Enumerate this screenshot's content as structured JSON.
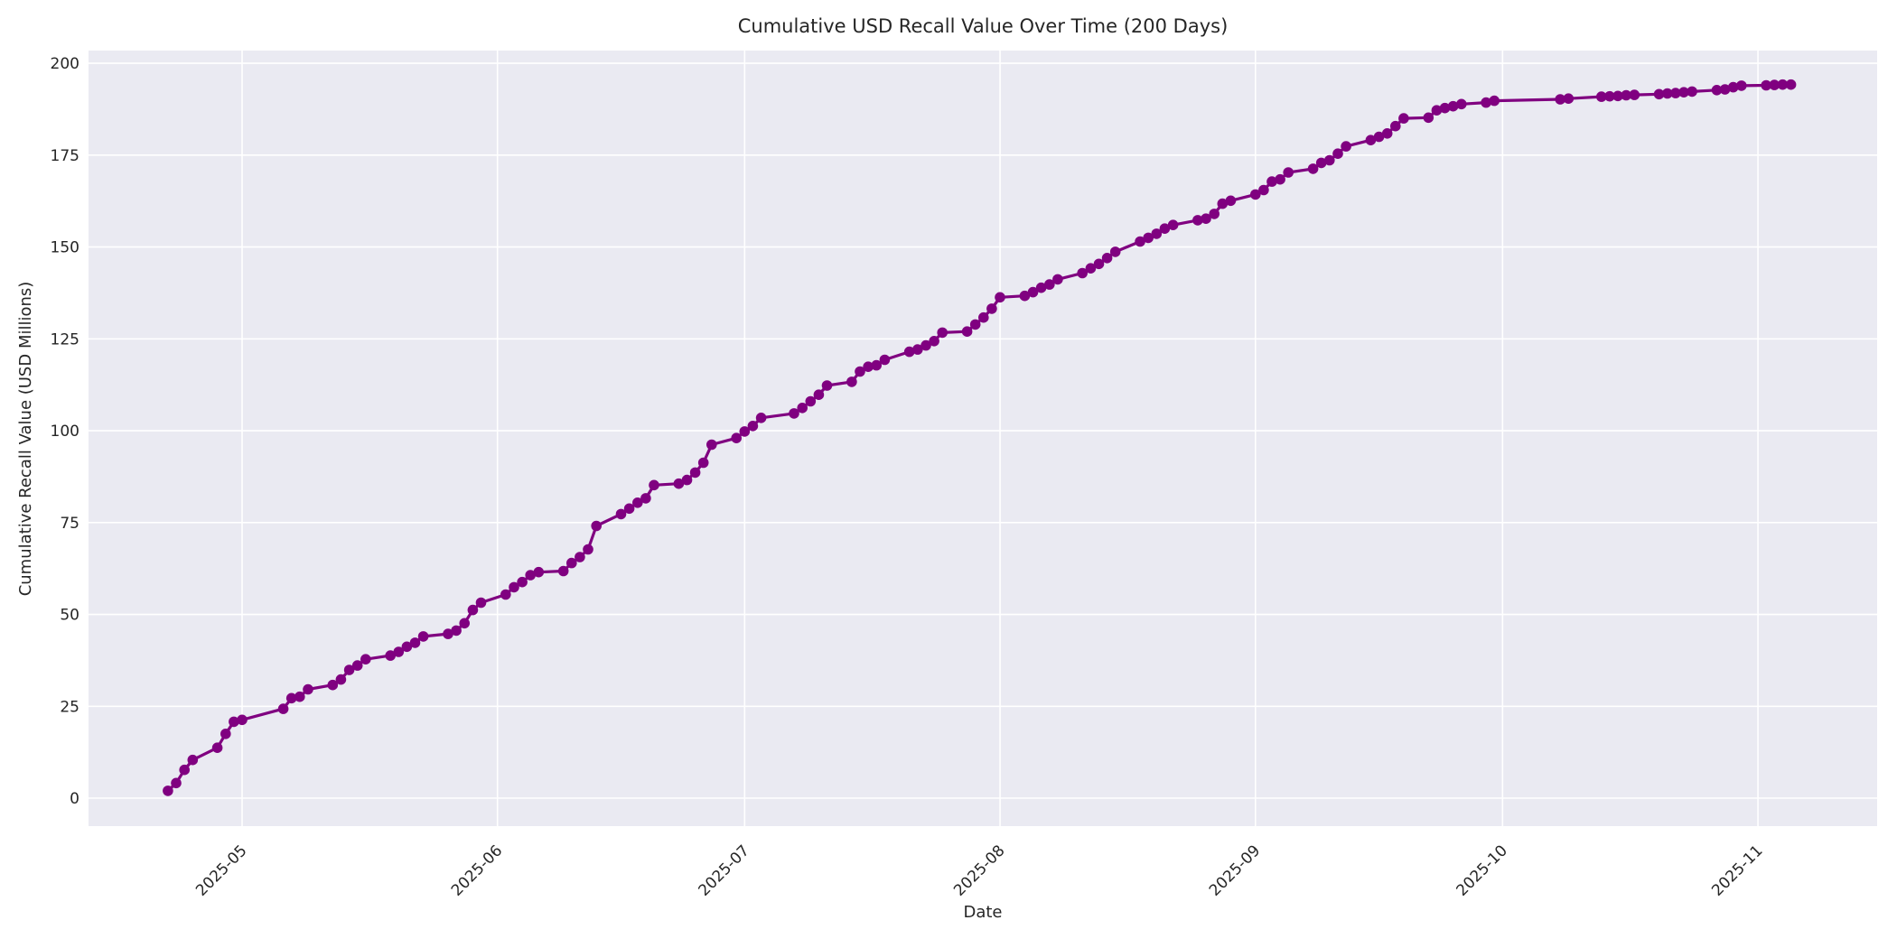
{
  "chart_data": {
    "type": "line",
    "title": "Cumulative USD Recall Value Over Time (200 Days)",
    "xlabel": "Date",
    "ylabel": "Cumulative Recall Value (USD Millions)",
    "legend": null,
    "grid": true,
    "plot_background": "#EAEAF2",
    "grid_color": "#FFFFFF",
    "line_color": "#800080",
    "marker": "circle",
    "text_color": "#262626",
    "y_ticks": [
      0,
      25,
      50,
      75,
      100,
      125,
      150,
      175,
      200
    ],
    "ylim": [
      -8,
      203.5
    ],
    "x_tick_labels": [
      "2025-05",
      "2025-06",
      "2025-07",
      "2025-08",
      "2025-09",
      "2025-10",
      "2025-11"
    ],
    "x_tick_dates": [
      "2025-05-01",
      "2025-06-01",
      "2025-07-01",
      "2025-08-01",
      "2025-09-01",
      "2025-10-01",
      "2025-11-01"
    ],
    "xlim": [
      "2025-04-12",
      "2025-11-15"
    ],
    "series": [
      {
        "name": "Cumulative USD recall value",
        "points": [
          [
            "2025-04-22",
            2.0
          ],
          [
            "2025-04-23",
            4.1
          ],
          [
            "2025-04-24",
            7.7
          ],
          [
            "2025-04-25",
            10.4
          ],
          [
            "2025-04-28",
            13.7
          ],
          [
            "2025-04-29",
            17.5
          ],
          [
            "2025-04-30",
            20.8
          ],
          [
            "2025-05-01",
            21.3
          ],
          [
            "2025-05-06",
            24.3
          ],
          [
            "2025-05-07",
            27.2
          ],
          [
            "2025-05-08",
            27.6
          ],
          [
            "2025-05-09",
            29.6
          ],
          [
            "2025-05-12",
            30.8
          ],
          [
            "2025-05-13",
            32.3
          ],
          [
            "2025-05-14",
            34.9
          ],
          [
            "2025-05-15",
            36.1
          ],
          [
            "2025-05-16",
            37.8
          ],
          [
            "2025-05-19",
            38.8
          ],
          [
            "2025-05-20",
            39.8
          ],
          [
            "2025-05-21",
            41.2
          ],
          [
            "2025-05-22",
            42.3
          ],
          [
            "2025-05-23",
            44.0
          ],
          [
            "2025-05-26",
            44.7
          ],
          [
            "2025-05-27",
            45.6
          ],
          [
            "2025-05-28",
            47.6
          ],
          [
            "2025-05-29",
            51.2
          ],
          [
            "2025-05-30",
            53.2
          ],
          [
            "2025-06-02",
            55.4
          ],
          [
            "2025-06-03",
            57.4
          ],
          [
            "2025-06-04",
            58.8
          ],
          [
            "2025-06-05",
            60.7
          ],
          [
            "2025-06-06",
            61.5
          ],
          [
            "2025-06-09",
            61.8
          ],
          [
            "2025-06-10",
            64.0
          ],
          [
            "2025-06-11",
            65.6
          ],
          [
            "2025-06-12",
            67.7
          ],
          [
            "2025-06-13",
            74.1
          ],
          [
            "2025-06-16",
            77.3
          ],
          [
            "2025-06-17",
            78.8
          ],
          [
            "2025-06-18",
            80.4
          ],
          [
            "2025-06-19",
            81.6
          ],
          [
            "2025-06-20",
            85.2
          ],
          [
            "2025-06-23",
            85.6
          ],
          [
            "2025-06-24",
            86.6
          ],
          [
            "2025-06-25",
            88.6
          ],
          [
            "2025-06-26",
            91.3
          ],
          [
            "2025-06-27",
            96.2
          ],
          [
            "2025-06-30",
            98.0
          ],
          [
            "2025-07-01",
            99.8
          ],
          [
            "2025-07-02",
            101.3
          ],
          [
            "2025-07-03",
            103.5
          ],
          [
            "2025-07-07",
            104.7
          ],
          [
            "2025-07-08",
            106.2
          ],
          [
            "2025-07-09",
            108.0
          ],
          [
            "2025-07-10",
            109.8
          ],
          [
            "2025-07-11",
            112.3
          ],
          [
            "2025-07-14",
            113.3
          ],
          [
            "2025-07-15",
            116.1
          ],
          [
            "2025-07-16",
            117.4
          ],
          [
            "2025-07-17",
            117.8
          ],
          [
            "2025-07-18",
            119.3
          ],
          [
            "2025-07-21",
            121.5
          ],
          [
            "2025-07-22",
            122.1
          ],
          [
            "2025-07-23",
            123.2
          ],
          [
            "2025-07-24",
            124.4
          ],
          [
            "2025-07-25",
            126.7
          ],
          [
            "2025-07-28",
            127.0
          ],
          [
            "2025-07-29",
            128.9
          ],
          [
            "2025-07-30",
            130.8
          ],
          [
            "2025-07-31",
            133.2
          ],
          [
            "2025-08-01",
            136.3
          ],
          [
            "2025-08-04",
            136.7
          ],
          [
            "2025-08-05",
            137.7
          ],
          [
            "2025-08-06",
            138.9
          ],
          [
            "2025-08-07",
            139.8
          ],
          [
            "2025-08-08",
            141.2
          ],
          [
            "2025-08-11",
            142.9
          ],
          [
            "2025-08-12",
            144.2
          ],
          [
            "2025-08-13",
            145.4
          ],
          [
            "2025-08-14",
            147.0
          ],
          [
            "2025-08-15",
            148.7
          ],
          [
            "2025-08-18",
            151.5
          ],
          [
            "2025-08-19",
            152.5
          ],
          [
            "2025-08-20",
            153.6
          ],
          [
            "2025-08-21",
            155.0
          ],
          [
            "2025-08-22",
            156.0
          ],
          [
            "2025-08-25",
            157.3
          ],
          [
            "2025-08-26",
            157.7
          ],
          [
            "2025-08-27",
            159.0
          ],
          [
            "2025-08-28",
            161.8
          ],
          [
            "2025-08-29",
            162.6
          ],
          [
            "2025-09-01",
            164.3
          ],
          [
            "2025-09-02",
            165.5
          ],
          [
            "2025-09-03",
            167.8
          ],
          [
            "2025-09-04",
            168.4
          ],
          [
            "2025-09-05",
            170.3
          ],
          [
            "2025-09-08",
            171.3
          ],
          [
            "2025-09-09",
            172.9
          ],
          [
            "2025-09-10",
            173.6
          ],
          [
            "2025-09-11",
            175.4
          ],
          [
            "2025-09-12",
            177.4
          ],
          [
            "2025-09-15",
            179.1
          ],
          [
            "2025-09-16",
            180.0
          ],
          [
            "2025-09-17",
            180.9
          ],
          [
            "2025-09-18",
            182.9
          ],
          [
            "2025-09-19",
            185.0
          ],
          [
            "2025-09-22",
            185.2
          ],
          [
            "2025-09-23",
            187.2
          ],
          [
            "2025-09-24",
            187.8
          ],
          [
            "2025-09-25",
            188.3
          ],
          [
            "2025-09-26",
            188.9
          ],
          [
            "2025-09-29",
            189.3
          ],
          [
            "2025-09-30",
            189.8
          ],
          [
            "2025-10-08",
            190.2
          ],
          [
            "2025-10-09",
            190.4
          ],
          [
            "2025-10-13",
            190.9
          ],
          [
            "2025-10-14",
            191.0
          ],
          [
            "2025-10-15",
            191.1
          ],
          [
            "2025-10-16",
            191.3
          ],
          [
            "2025-10-17",
            191.4
          ],
          [
            "2025-10-20",
            191.6
          ],
          [
            "2025-10-21",
            191.8
          ],
          [
            "2025-10-22",
            191.9
          ],
          [
            "2025-10-23",
            192.1
          ],
          [
            "2025-10-24",
            192.3
          ],
          [
            "2025-10-27",
            192.7
          ],
          [
            "2025-10-28",
            192.9
          ],
          [
            "2025-10-29",
            193.5
          ],
          [
            "2025-10-30",
            193.9
          ],
          [
            "2025-11-02",
            194.0
          ],
          [
            "2025-11-03",
            194.1
          ],
          [
            "2025-11-04",
            194.2
          ],
          [
            "2025-11-05",
            194.2
          ]
        ]
      }
    ]
  }
}
